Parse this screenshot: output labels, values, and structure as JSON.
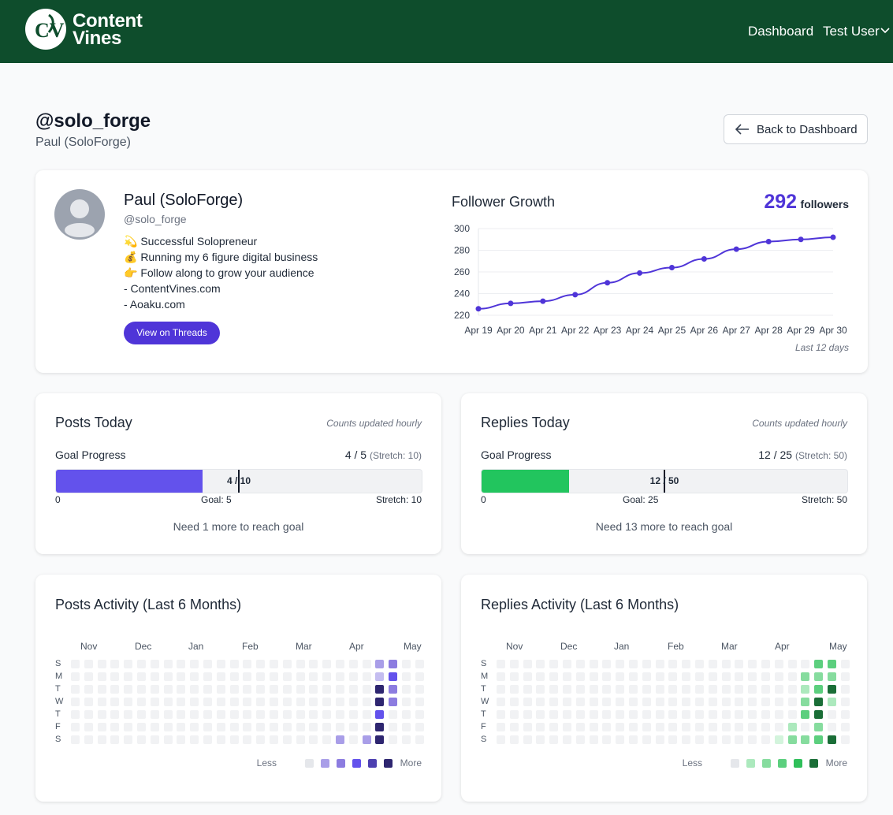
{
  "header": {
    "brand_line1": "Content",
    "brand_line2": "Vines",
    "nav_dashboard": "Dashboard",
    "nav_user": "Test User"
  },
  "page": {
    "handle": "@solo_forge",
    "subtitle": "Paul (SoloForge)",
    "back_label": "Back to Dashboard"
  },
  "profile": {
    "name": "Paul (SoloForge)",
    "handle": "@solo_forge",
    "bio": [
      "💫 Successful Solopreneur",
      "💰 Running my 6 figure digital business",
      "👉 Follow along to grow your audience",
      "- ContentVines.com",
      "- Aoaku.com"
    ],
    "threads_button": "View on Threads"
  },
  "follower_growth": {
    "title": "Follower Growth",
    "count": "292",
    "count_label": "followers",
    "note": "Last 12 days"
  },
  "chart_data": {
    "type": "line",
    "x": [
      "Apr 19",
      "Apr 20",
      "Apr 21",
      "Apr 22",
      "Apr 23",
      "Apr 24",
      "Apr 25",
      "Apr 26",
      "Apr 27",
      "Apr 28",
      "Apr 29",
      "Apr 30"
    ],
    "series": [
      {
        "values": [
          226,
          231,
          233,
          239,
          250,
          259,
          264,
          272,
          281,
          288,
          290,
          292
        ]
      }
    ],
    "yticks": [
      220,
      240,
      260,
      280,
      300
    ],
    "ylim": [
      220,
      300
    ],
    "color": "#4f35d8",
    "grid": true
  },
  "posts_today": {
    "title": "Posts Today",
    "note": "Counts updated hourly",
    "goal_label": "Goal Progress",
    "value_text": "4 / 5",
    "stretch_text": "(Stretch: 10)",
    "bar_text": "4 / 10",
    "current": 4,
    "goal": 5,
    "stretch": 10,
    "axis_start": "0",
    "axis_goal": "Goal: 5",
    "axis_stretch": "Stretch: 10",
    "message": "Need 1 more to reach goal",
    "fill_color": "#6352ec"
  },
  "replies_today": {
    "title": "Replies Today",
    "note": "Counts updated hourly",
    "goal_label": "Goal Progress",
    "value_text": "12 / 25",
    "stretch_text": "(Stretch: 50)",
    "bar_text": "12 / 50",
    "current": 12,
    "goal": 25,
    "stretch": 50,
    "axis_start": "0",
    "axis_goal": "Goal: 25",
    "axis_stretch": "Stretch: 50",
    "message": "Need 13 more to reach goal",
    "fill_color": "#22c55e"
  },
  "posts_activity": {
    "title": "Posts Activity (Last 6 Months)",
    "months": [
      "Nov",
      "Dec",
      "Jan",
      "Feb",
      "Mar",
      "Apr",
      "May"
    ],
    "days": [
      "S",
      "M",
      "T",
      "W",
      "T",
      "F",
      "S"
    ],
    "legend_less": "Less",
    "legend_more": "More",
    "palette": [
      "#e5e7eb",
      "#c4bdf0",
      "#a99ee8",
      "#8c7ce0",
      "#6352ec",
      "#4c3fb0",
      "#2e2670"
    ],
    "empty_color": "#f1f2f4",
    "active_cells": [
      [
        23,
        0,
        2
      ],
      [
        24,
        0,
        3
      ],
      [
        23,
        1,
        1
      ],
      [
        24,
        1,
        4
      ],
      [
        23,
        2,
        6
      ],
      [
        24,
        2,
        3
      ],
      [
        23,
        3,
        6
      ],
      [
        24,
        3,
        3
      ],
      [
        23,
        4,
        4
      ],
      [
        23,
        5,
        6
      ],
      [
        22,
        6,
        2
      ],
      [
        23,
        6,
        6
      ],
      [
        20,
        6,
        2
      ]
    ]
  },
  "replies_activity": {
    "title": "Replies Activity (Last 6 Months)",
    "months": [
      "Nov",
      "Dec",
      "Jan",
      "Feb",
      "Mar",
      "Apr",
      "May"
    ],
    "days": [
      "S",
      "M",
      "T",
      "W",
      "T",
      "F",
      "S"
    ],
    "legend_less": "Less",
    "legend_more": "More",
    "palette": [
      "#e5e7eb",
      "#d3f4dc",
      "#ace9bd",
      "#86dc9e",
      "#5ccf7e",
      "#2fbf5a",
      "#1a6e37"
    ],
    "empty_color": "#f1f2f4",
    "active_cells": [
      [
        24,
        0,
        4
      ],
      [
        25,
        0,
        4
      ],
      [
        23,
        1,
        3
      ],
      [
        24,
        1,
        3
      ],
      [
        25,
        1,
        3
      ],
      [
        23,
        2,
        2
      ],
      [
        24,
        2,
        4
      ],
      [
        25,
        2,
        6
      ],
      [
        23,
        3,
        3
      ],
      [
        24,
        3,
        6
      ],
      [
        25,
        3,
        2
      ],
      [
        23,
        4,
        4
      ],
      [
        24,
        4,
        6
      ],
      [
        22,
        5,
        2
      ],
      [
        24,
        5,
        3
      ],
      [
        22,
        6,
        3
      ],
      [
        23,
        6,
        3
      ],
      [
        24,
        6,
        4
      ],
      [
        25,
        6,
        6
      ],
      [
        21,
        6,
        1
      ]
    ]
  }
}
